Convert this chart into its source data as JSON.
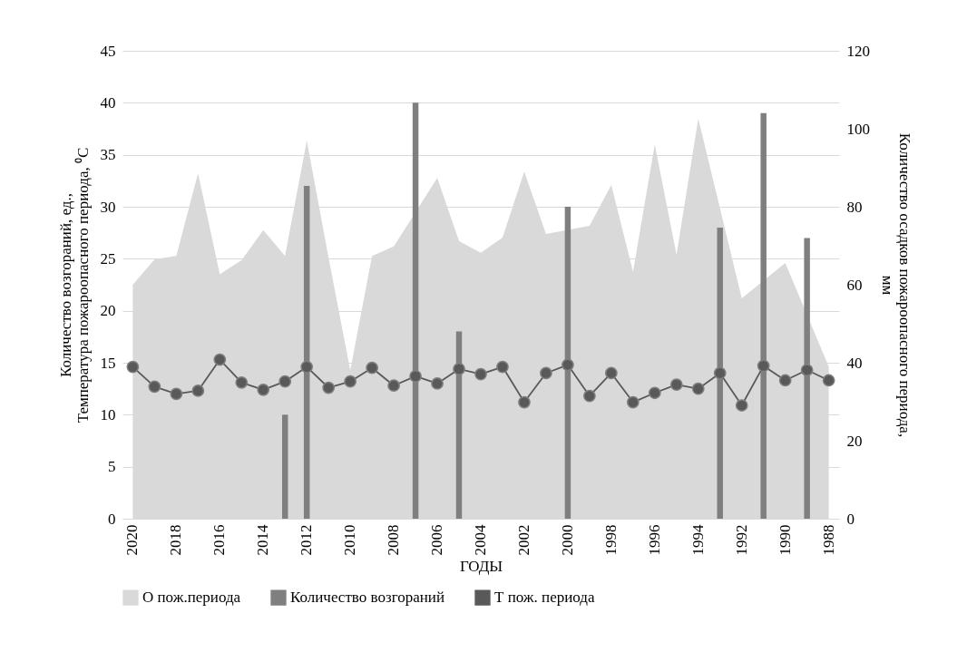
{
  "chart_data": {
    "type": "bar",
    "xlabel": "ГОДЫ",
    "ylabel": "Количество возгораний, ед.,\nТемпература пожароопасного периода, ⁰С",
    "y2label": "Количество осадков пожароопасного периода,\nмм",
    "categories": [
      "2020",
      null,
      "2018",
      null,
      "2016",
      null,
      "2014",
      null,
      "2012",
      null,
      "2010",
      null,
      "2008",
      null,
      "2006",
      null,
      "2004",
      null,
      "2002",
      null,
      "2000",
      null,
      "1998",
      null,
      "1996",
      null,
      "1994",
      null,
      "1992",
      null,
      "1990",
      null,
      "1988"
    ],
    "series": [
      {
        "name": "О пож.периода",
        "type": "area",
        "axis": "y2",
        "color": "#d9d9d9",
        "values": [
          60,
          66.5,
          67.4,
          88.6,
          62.7,
          66.3,
          74,
          67.4,
          97,
          67,
          38,
          67.4,
          69.8,
          null,
          87.4,
          71.2,
          68.2,
          72.1,
          89,
          73,
          null,
          75.1,
          85.6,
          63.3,
          96,
          67.7,
          102.6,
          null,
          56.5,
          null,
          65.6,
          null,
          39
        ]
      },
      {
        "name": "Количество возгораний",
        "color": "#7f7f7f",
        "values": [
          null,
          null,
          null,
          null,
          null,
          null,
          null,
          10,
          32,
          null,
          null,
          null,
          null,
          40,
          null,
          18,
          null,
          null,
          null,
          null,
          30,
          null,
          null,
          null,
          null,
          null,
          null,
          28,
          null,
          39,
          null,
          27,
          null
        ]
      },
      {
        "name": "Т пож. периода",
        "type": "line",
        "color": "#595959",
        "marker": "circle",
        "line_style": "solid",
        "values": [
          14.6,
          12.7,
          12.0,
          12.3,
          15.3,
          13.1,
          12.4,
          13.2,
          14.6,
          12.6,
          13.2,
          14.5,
          12.8,
          13.7,
          13.0,
          14.4,
          13.9,
          14.6,
          11.2,
          14.0,
          14.8,
          11.8,
          14.0,
          11.2,
          12.1,
          12.9,
          12.5,
          14.0,
          10.9,
          14.7,
          13.3,
          14.3,
          13.3
        ]
      }
    ],
    "ylim": [
      0,
      45
    ],
    "yticks": [
      0,
      5,
      10,
      15,
      20,
      25,
      30,
      35,
      40,
      45
    ],
    "y2lim": [
      0,
      120
    ],
    "y2ticks": [
      0,
      20,
      40,
      60,
      80,
      100,
      120
    ],
    "grid": "y",
    "legend": "bottom"
  }
}
